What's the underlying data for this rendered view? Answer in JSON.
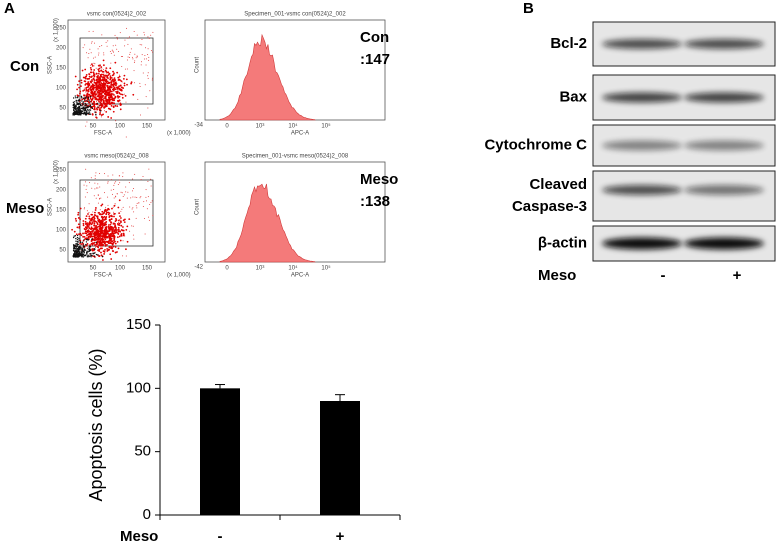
{
  "panel_a": {
    "label": "A",
    "flow": [
      {
        "group": "Con",
        "count": ":147",
        "scatter_title": "vsmc con(0524)2_002",
        "histogram_title": "Specimen_001-vsmc con(0524)2_002",
        "histogram_min": "-34"
      },
      {
        "group": "Meso",
        "count": ":138",
        "scatter_title": "vsmc meso(0524)2_008",
        "histogram_title": "Specimen_001-vsmc meso(0524)2_008",
        "histogram_min": "-42"
      }
    ],
    "scatter_x_label": "FSC-A",
    "scatter_y_label": "SSC-A",
    "scale_note": "(x 1,000)",
    "scatter_y_ticks": [
      "250",
      "200",
      "150",
      "100",
      "50"
    ],
    "scatter_x_ticks": [
      "50",
      "100",
      "150"
    ],
    "histogram_x_label": "APC-A",
    "histogram_y_label": "Count",
    "histogram_x_ticks": [
      "0",
      "10³",
      "10⁴",
      "10⁵"
    ]
  },
  "panel_b": {
    "label": "B",
    "rows": [
      [
        "Bcl-2"
      ],
      [
        "Bax"
      ],
      [
        "Cytochrome C"
      ],
      [
        "Cleaved",
        "Caspase-3"
      ],
      [
        "β-actin"
      ]
    ],
    "lane_title": "Meso",
    "lanes": [
      "-",
      "+"
    ]
  },
  "chart_data": {
    "type": "bar",
    "y_label": "Apoptosis  cells (%)",
    "x_label": "Meso",
    "categories": [
      "-",
      "+"
    ],
    "values": [
      100,
      90
    ],
    "errors": [
      3,
      5
    ],
    "color": "#000000",
    "ylim": [
      0,
      150
    ],
    "yticks": [
      0,
      50,
      100,
      150
    ]
  }
}
